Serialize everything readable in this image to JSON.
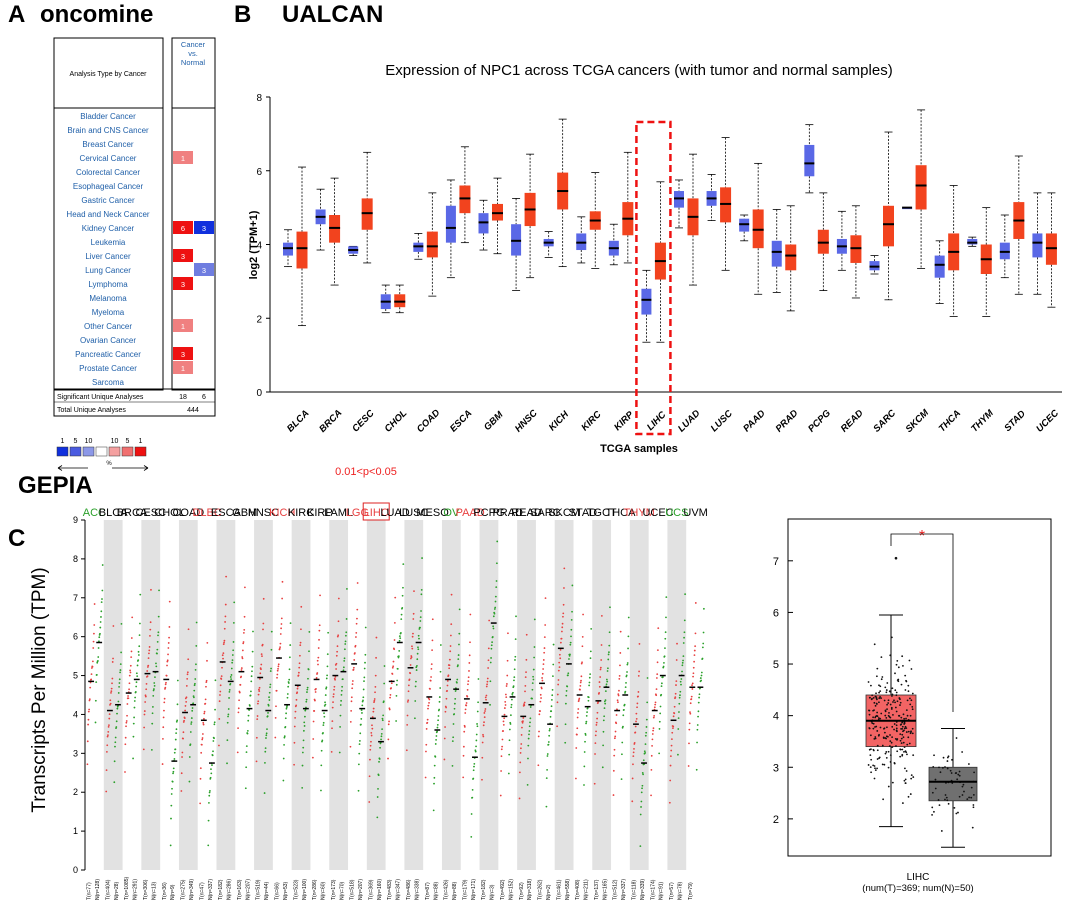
{
  "panels": {
    "A": {
      "letter": "A",
      "title": "oncomine"
    },
    "B": {
      "letter": "B",
      "title": "UALCAN"
    },
    "C": {
      "letter": "C",
      "title": "GEPIA"
    }
  },
  "oncomine": {
    "header_left": "Analysis Type by Cancer",
    "header_right_lines": [
      "Cancer",
      "vs.",
      "Normal"
    ],
    "rows": [
      {
        "name": "Bladder Cancer",
        "up": "",
        "down": ""
      },
      {
        "name": "Brain and CNS Cancer",
        "up": "",
        "down": ""
      },
      {
        "name": "Breast Cancer",
        "up": "",
        "down": ""
      },
      {
        "name": "Cervical Cancer",
        "up": "1",
        "down": ""
      },
      {
        "name": "Colorectal Cancer",
        "up": "",
        "down": ""
      },
      {
        "name": "Esophageal Cancer",
        "up": "",
        "down": ""
      },
      {
        "name": "Gastric Cancer",
        "up": "",
        "down": ""
      },
      {
        "name": "Head and Neck Cancer",
        "up": "",
        "down": ""
      },
      {
        "name": "Kidney Cancer",
        "up": "6",
        "down": "3"
      },
      {
        "name": "Leukemia",
        "up": "",
        "down": ""
      },
      {
        "name": "Liver Cancer",
        "up": "3",
        "down": ""
      },
      {
        "name": "Lung Cancer",
        "up": "",
        "down": "3"
      },
      {
        "name": "Lymphoma",
        "up": "3",
        "down": ""
      },
      {
        "name": "Melanoma",
        "up": "",
        "down": ""
      },
      {
        "name": "Myeloma",
        "up": "",
        "down": ""
      },
      {
        "name": "Other Cancer",
        "up": "1",
        "down": ""
      },
      {
        "name": "Ovarian Cancer",
        "up": "",
        "down": ""
      },
      {
        "name": "Pancreatic Cancer",
        "up": "3",
        "down": ""
      },
      {
        "name": "Prostate Cancer",
        "up": "1",
        "down": ""
      },
      {
        "name": "Sarcoma",
        "up": "",
        "down": ""
      }
    ],
    "significant_label": "Significant Unique Analyses",
    "significant_up": "18",
    "significant_down": "6",
    "total_label": "Total Unique Analyses",
    "total_value": "444",
    "legend_down": [
      "1",
      "5",
      "10"
    ],
    "legend_up": [
      "10",
      "5",
      "1"
    ],
    "legend_unit": "%",
    "colors": {
      "strong_up": "#ee1111",
      "light_up": "#f08080",
      "strong_down": "#1030dd",
      "light_down": "#6f7de0"
    }
  },
  "chart_data": [
    {
      "type": "boxplot",
      "title": "Expression of NPC1 across TCGA cancers (with tumor and normal samples)",
      "xlabel": "TCGA samples",
      "ylabel": "log2 (TPM+1)",
      "ylim": [
        0,
        8
      ],
      "yticks": [
        "0",
        "2",
        "4",
        "6",
        "8"
      ],
      "highlight": "LIHC",
      "series": [
        {
          "name": "Normal",
          "color": "#5a68e6"
        },
        {
          "name": "Tumor",
          "color": "#f2431e"
        }
      ],
      "categories": [
        {
          "name": "BLCA",
          "normal": [
            3.4,
            3.7,
            3.9,
            4.05,
            4.4
          ],
          "tumor": [
            1.8,
            3.35,
            3.9,
            4.35,
            6.1
          ]
        },
        {
          "name": "BRCA",
          "normal": [
            3.85,
            4.55,
            4.75,
            4.95,
            5.5
          ],
          "tumor": [
            2.9,
            4.05,
            4.45,
            4.8,
            5.8
          ]
        },
        {
          "name": "CESC",
          "normal": [
            3.7,
            3.75,
            3.85,
            3.95,
            3.95
          ],
          "tumor": [
            3.5,
            4.4,
            4.85,
            5.25,
            6.5
          ]
        },
        {
          "name": "CHOL",
          "normal": [
            2.15,
            2.25,
            2.45,
            2.65,
            2.9
          ],
          "tumor": [
            2.15,
            2.3,
            2.45,
            2.65,
            2.9
          ]
        },
        {
          "name": "COAD",
          "normal": [
            3.6,
            3.8,
            3.95,
            4.05,
            4.3
          ],
          "tumor": [
            2.6,
            3.65,
            3.95,
            4.35,
            5.4
          ]
        },
        {
          "name": "ESCA",
          "normal": [
            3.1,
            4.05,
            4.45,
            5.05,
            5.75
          ],
          "tumor": [
            4.05,
            4.85,
            5.25,
            5.6,
            6.65
          ]
        },
        {
          "name": "GBM",
          "normal": [
            3.85,
            4.3,
            4.6,
            4.85,
            5.2
          ],
          "tumor": [
            3.75,
            4.65,
            4.85,
            5.1,
            5.8
          ]
        },
        {
          "name": "HNSC",
          "normal": [
            2.75,
            3.7,
            4.1,
            4.55,
            5.25
          ],
          "tumor": [
            3.1,
            4.5,
            4.95,
            5.4,
            6.45
          ]
        },
        {
          "name": "KICH",
          "normal": [
            3.65,
            3.95,
            4.05,
            4.15,
            4.35
          ],
          "tumor": [
            3.4,
            4.95,
            5.45,
            5.95,
            7.4
          ]
        },
        {
          "name": "KIRC",
          "normal": [
            3.5,
            3.85,
            4.05,
            4.3,
            4.75
          ],
          "tumor": [
            3.35,
            4.4,
            4.65,
            4.9,
            5.95
          ]
        },
        {
          "name": "KIRP",
          "normal": [
            3.45,
            3.7,
            3.9,
            4.1,
            4.55
          ],
          "tumor": [
            3.5,
            4.25,
            4.7,
            5.15,
            6.5
          ]
        },
        {
          "name": "LIHC",
          "normal": [
            1.35,
            2.1,
            2.5,
            2.8,
            3.3
          ],
          "tumor": [
            1.35,
            3.05,
            3.55,
            4.05,
            5.7
          ]
        },
        {
          "name": "LUAD",
          "normal": [
            4.45,
            5.0,
            5.25,
            5.45,
            5.75
          ],
          "tumor": [
            2.9,
            4.25,
            4.75,
            5.25,
            6.45
          ]
        },
        {
          "name": "LUSC",
          "normal": [
            4.65,
            5.05,
            5.25,
            5.45,
            5.9
          ],
          "tumor": [
            3.3,
            4.6,
            5.1,
            5.55,
            6.9
          ]
        },
        {
          "name": "PAAD",
          "normal": [
            4.1,
            4.35,
            4.55,
            4.7,
            4.8
          ],
          "tumor": [
            2.65,
            3.9,
            4.4,
            4.95,
            6.2
          ]
        },
        {
          "name": "PRAD",
          "normal": [
            2.7,
            3.4,
            3.8,
            4.1,
            4.95
          ],
          "tumor": [
            2.2,
            3.3,
            3.7,
            4.0,
            5.05
          ]
        },
        {
          "name": "PCPG",
          "normal": [
            5.4,
            5.85,
            6.2,
            6.7,
            7.25
          ],
          "tumor": [
            2.75,
            3.75,
            4.05,
            4.4,
            5.4
          ]
        },
        {
          "name": "READ",
          "normal": [
            3.3,
            3.75,
            3.95,
            4.15,
            4.9
          ],
          "tumor": [
            2.55,
            3.5,
            3.9,
            4.25,
            5.05
          ]
        },
        {
          "name": "SARC",
          "normal": [
            3.2,
            3.3,
            3.4,
            3.55,
            3.7
          ],
          "tumor": [
            2.5,
            3.95,
            4.55,
            5.05,
            7.05
          ]
        },
        {
          "name": "SKCM",
          "normal": [
            5.0,
            5.0,
            5.0,
            5.0,
            5.0
          ],
          "tumor": [
            3.35,
            4.95,
            5.6,
            6.15,
            7.65
          ]
        },
        {
          "name": "THCA",
          "normal": [
            2.4,
            3.1,
            3.45,
            3.7,
            4.1
          ],
          "tumor": [
            2.05,
            3.3,
            3.8,
            4.3,
            5.6
          ]
        },
        {
          "name": "THYM",
          "normal": [
            3.95,
            4.0,
            4.05,
            4.15,
            4.2
          ],
          "tumor": [
            2.05,
            3.2,
            3.6,
            4.0,
            5.0
          ]
        },
        {
          "name": "STAD",
          "normal": [
            3.1,
            3.6,
            3.8,
            4.05,
            4.8
          ],
          "tumor": [
            2.65,
            4.15,
            4.65,
            5.15,
            6.4
          ]
        },
        {
          "name": "UCEC",
          "normal": [
            2.65,
            3.65,
            4.05,
            4.3,
            5.4
          ],
          "tumor": [
            2.3,
            3.45,
            3.9,
            4.3,
            5.4
          ]
        }
      ]
    },
    {
      "type": "scatter",
      "title": "GEPIA",
      "ylabel": "Transcripts Per Million (TPM)",
      "ylim": [
        0,
        9
      ],
      "yticks": [
        "0",
        "1",
        "2",
        "3",
        "4",
        "5",
        "6",
        "7",
        "8",
        "9"
      ],
      "significance_note": "0.01<p<0.05",
      "boxed_category": "LIHC",
      "category_colors": {
        "up": "#e84040",
        "down": "#2aa02a",
        "none": "#000000"
      },
      "categories": [
        {
          "name": "ACC",
          "status": "down",
          "tumor_median": 4.85,
          "normal_median": 5.85,
          "n_t": "T(n=77)",
          "n_n": "N(n=128)"
        },
        {
          "name": "BLCA",
          "status": "none",
          "tumor_median": 4.1,
          "normal_median": 4.25,
          "n_t": "T(n=404)",
          "n_n": "N(n=28)"
        },
        {
          "name": "BRCA",
          "status": "none",
          "tumor_median": 4.55,
          "normal_median": 4.9,
          "n_t": "T(n=1085)",
          "n_n": "N(n=291)"
        },
        {
          "name": "CESC",
          "status": "none",
          "tumor_median": 5.05,
          "normal_median": 5.1,
          "n_t": "T(n=306)",
          "n_n": "N(n=13)"
        },
        {
          "name": "CHOL",
          "status": "none",
          "tumor_median": 4.9,
          "normal_median": 2.8,
          "n_t": "T(n=36)",
          "n_n": "N(n=9)"
        },
        {
          "name": "COAD",
          "status": "none",
          "tumor_median": 4.05,
          "normal_median": 4.25,
          "n_t": "T(n=275)",
          "n_n": "N(n=349)"
        },
        {
          "name": "DLBC",
          "status": "up",
          "tumor_median": 3.85,
          "normal_median": 2.75,
          "n_t": "T(n=47)",
          "n_n": "N(n=337)"
        },
        {
          "name": "ESCA",
          "status": "none",
          "tumor_median": 5.35,
          "normal_median": 4.85,
          "n_t": "T(n=182)",
          "n_n": "N(n=286)"
        },
        {
          "name": "GBM",
          "status": "none",
          "tumor_median": 5.1,
          "normal_median": 4.15,
          "n_t": "T(n=163)",
          "n_n": "N(n=207)"
        },
        {
          "name": "HNSC",
          "status": "none",
          "tumor_median": 4.95,
          "normal_median": 4.1,
          "n_t": "T(n=519)",
          "n_n": "N(n=44)"
        },
        {
          "name": "KICH",
          "status": "up",
          "tumor_median": 5.45,
          "normal_median": 4.25,
          "n_t": "T(n=66)",
          "n_n": "N(n=53)"
        },
        {
          "name": "KIRC",
          "status": "none",
          "tumor_median": 4.75,
          "normal_median": 4.15,
          "n_t": "T(n=523)",
          "n_n": "N(n=100)"
        },
        {
          "name": "KIRP",
          "status": "none",
          "tumor_median": 4.9,
          "normal_median": 4.1,
          "n_t": "T(n=286)",
          "n_n": "N(n=60)"
        },
        {
          "name": "LAML",
          "status": "none",
          "tumor_median": 5.0,
          "normal_median": 5.1,
          "n_t": "T(n=173)",
          "n_n": "N(n=70)"
        },
        {
          "name": "LGG",
          "status": "up",
          "tumor_median": 5.3,
          "normal_median": 4.15,
          "n_t": "T(n=518)",
          "n_n": "N(n=207)"
        },
        {
          "name": "LIHC",
          "status": "up",
          "tumor_median": 3.9,
          "normal_median": 3.3,
          "n_t": "T(n=369)",
          "n_n": "N(n=160)"
        },
        {
          "name": "LUAD",
          "status": "none",
          "tumor_median": 4.85,
          "normal_median": 5.85,
          "n_t": "T(n=483)",
          "n_n": "N(n=347)"
        },
        {
          "name": "LUSC",
          "status": "none",
          "tumor_median": 5.2,
          "normal_median": 5.85,
          "n_t": "T(n=486)",
          "n_n": "N(n=338)"
        },
        {
          "name": "MESO",
          "status": "none",
          "tumor_median": 4.45,
          "normal_median": 3.6,
          "n_t": "T(n=87)",
          "n_n": "N(n=88)"
        },
        {
          "name": "OV",
          "status": "down",
          "tumor_median": 4.9,
          "normal_median": 4.65,
          "n_t": "T(n=426)",
          "n_n": "N(n=88)"
        },
        {
          "name": "PAAD",
          "status": "up",
          "tumor_median": 4.4,
          "normal_median": 2.9,
          "n_t": "T(n=179)",
          "n_n": "N(n=171)"
        },
        {
          "name": "PCPG",
          "status": "none",
          "tumor_median": 4.3,
          "normal_median": 6.35,
          "n_t": "T(n=182)",
          "n_n": "N(n=3)"
        },
        {
          "name": "PRAD",
          "status": "none",
          "tumor_median": 3.95,
          "normal_median": 4.45,
          "n_t": "T(n=492)",
          "n_n": "N(n=152)"
        },
        {
          "name": "READ",
          "status": "none",
          "tumor_median": 3.95,
          "normal_median": 4.25,
          "n_t": "T(n=92)",
          "n_n": "N(n=318)"
        },
        {
          "name": "SARC",
          "status": "none",
          "tumor_median": 4.8,
          "normal_median": 3.75,
          "n_t": "T(n=262)",
          "n_n": "N(n=2)"
        },
        {
          "name": "SKCM",
          "status": "none",
          "tumor_median": 5.7,
          "normal_median": 5.3,
          "n_t": "T(n=461)",
          "n_n": "N(n=558)"
        },
        {
          "name": "STAD",
          "status": "none",
          "tumor_median": 4.5,
          "normal_median": 4.2,
          "n_t": "T(n=408)",
          "n_n": "N(n=211)"
        },
        {
          "name": "TGCT",
          "status": "none",
          "tumor_median": 4.35,
          "normal_median": 4.7,
          "n_t": "T(n=137)",
          "n_n": "N(n=165)"
        },
        {
          "name": "THCA",
          "status": "none",
          "tumor_median": 4.1,
          "normal_median": 4.5,
          "n_t": "T(n=512)",
          "n_n": "N(n=337)"
        },
        {
          "name": "THYM",
          "status": "up",
          "tumor_median": 3.75,
          "normal_median": 2.75,
          "n_t": "T(n=118)",
          "n_n": "N(n=339)"
        },
        {
          "name": "UCEC",
          "status": "none",
          "tumor_median": 4.1,
          "normal_median": 5.0,
          "n_t": "T(n=174)",
          "n_n": "N(n=91)"
        },
        {
          "name": "UCS",
          "status": "down",
          "tumor_median": 3.85,
          "normal_median": 5.0,
          "n_t": "T(n=57)",
          "n_n": "N(n=78)"
        },
        {
          "name": "UVM",
          "status": "none",
          "tumor_median": 4.7,
          "normal_median": 4.7,
          "n_t": "T(n=79)",
          "n_n": ""
        }
      ]
    },
    {
      "type": "boxplot",
      "category": "LIHC",
      "xlabel": "LIHC",
      "sample_note": "(num(T)=369; num(N)=50)",
      "significance": "*",
      "ylim": [
        1.3,
        7.5
      ],
      "yticks": [
        "2",
        "3",
        "4",
        "5",
        "6",
        "7"
      ],
      "series": [
        {
          "name": "Tumor",
          "color": "#f26464",
          "stats": [
            1.85,
            3.4,
            3.9,
            4.4,
            5.95
          ],
          "outlier": 7.05
        },
        {
          "name": "Normal",
          "color": "#707070",
          "stats": [
            1.45,
            2.35,
            2.72,
            3.0,
            3.75
          ]
        }
      ]
    }
  ]
}
